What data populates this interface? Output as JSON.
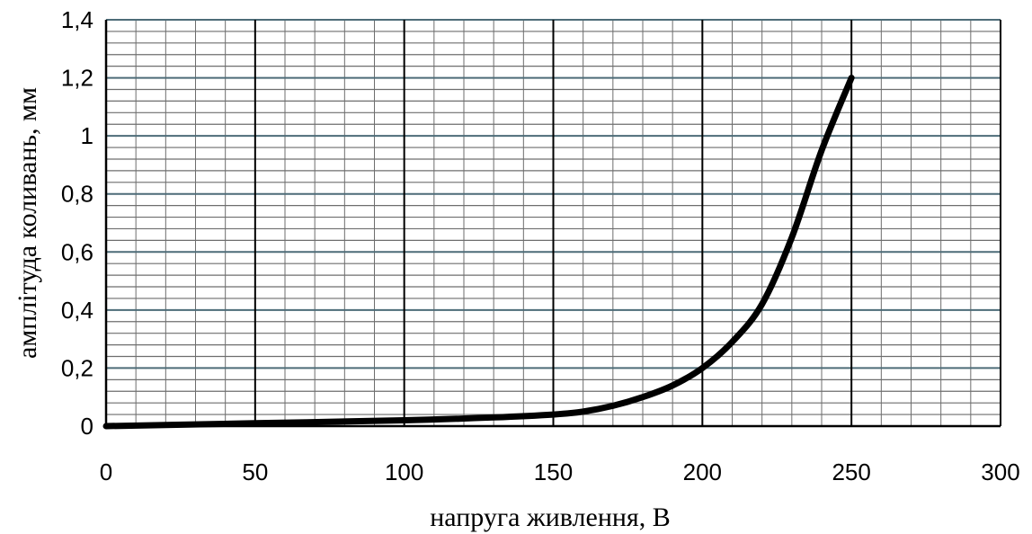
{
  "chart_data": {
    "type": "line",
    "title": "",
    "xlabel": "напруга живлення, В",
    "ylabel": "амплітуда коливань, мм",
    "xlim": [
      0,
      300
    ],
    "ylim": [
      0,
      1.4
    ],
    "x_ticks": [
      "0",
      "50",
      "100",
      "150",
      "200",
      "250",
      "300"
    ],
    "y_ticks": [
      "0",
      "0,2",
      "0,4",
      "0,6",
      "0,8",
      "1",
      "1,2",
      "1,4"
    ],
    "grid": true,
    "legend": "none",
    "series": [
      {
        "x": [
          0,
          50,
          100,
          130,
          150,
          160,
          170,
          180,
          190,
          200,
          210,
          220,
          230,
          240,
          250
        ],
        "y": [
          0.0,
          0.01,
          0.02,
          0.03,
          0.04,
          0.05,
          0.07,
          0.1,
          0.14,
          0.2,
          0.29,
          0.42,
          0.65,
          0.95,
          1.2
        ],
        "color": "#000000"
      }
    ],
    "colors": {
      "line": "#000000",
      "minor_grid": "#6e6e6e",
      "major_grid": "#4d6c78",
      "vertical_grid": "#000000"
    }
  }
}
